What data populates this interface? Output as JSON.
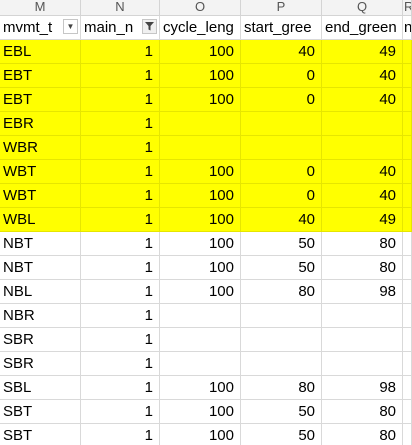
{
  "column_letters": [
    "M",
    "N",
    "O",
    "P",
    "Q",
    "R"
  ],
  "headers": [
    {
      "label": "mvmt_t",
      "filter_icon": "dropdown-arrow"
    },
    {
      "label": "main_n",
      "filter_icon": "filter-funnel"
    },
    {
      "label": "cycle_leng",
      "filter_icon": ""
    },
    {
      "label": "start_gree",
      "filter_icon": ""
    },
    {
      "label": "end_green",
      "filter_icon": ""
    },
    {
      "label": "n",
      "filter_icon": ""
    }
  ],
  "rows": [
    {
      "mvmt": "EBL",
      "main": "1",
      "cycle": "100",
      "start": "40",
      "end": "49",
      "highlight": true
    },
    {
      "mvmt": "EBT",
      "main": "1",
      "cycle": "100",
      "start": "0",
      "end": "40",
      "highlight": true
    },
    {
      "mvmt": "EBT",
      "main": "1",
      "cycle": "100",
      "start": "0",
      "end": "40",
      "highlight": true
    },
    {
      "mvmt": "EBR",
      "main": "1",
      "cycle": "",
      "start": "",
      "end": "",
      "highlight": true
    },
    {
      "mvmt": "WBR",
      "main": "1",
      "cycle": "",
      "start": "",
      "end": "",
      "highlight": true
    },
    {
      "mvmt": "WBT",
      "main": "1",
      "cycle": "100",
      "start": "0",
      "end": "40",
      "highlight": true
    },
    {
      "mvmt": "WBT",
      "main": "1",
      "cycle": "100",
      "start": "0",
      "end": "40",
      "highlight": true
    },
    {
      "mvmt": "WBL",
      "main": "1",
      "cycle": "100",
      "start": "40",
      "end": "49",
      "highlight": true
    },
    {
      "mvmt": "NBT",
      "main": "1",
      "cycle": "100",
      "start": "50",
      "end": "80",
      "highlight": false
    },
    {
      "mvmt": "NBT",
      "main": "1",
      "cycle": "100",
      "start": "50",
      "end": "80",
      "highlight": false
    },
    {
      "mvmt": "NBL",
      "main": "1",
      "cycle": "100",
      "start": "80",
      "end": "98",
      "highlight": false
    },
    {
      "mvmt": "NBR",
      "main": "1",
      "cycle": "",
      "start": "",
      "end": "",
      "highlight": false
    },
    {
      "mvmt": "SBR",
      "main": "1",
      "cycle": "",
      "start": "",
      "end": "",
      "highlight": false
    },
    {
      "mvmt": "SBR",
      "main": "1",
      "cycle": "",
      "start": "",
      "end": "",
      "highlight": false
    },
    {
      "mvmt": "SBL",
      "main": "1",
      "cycle": "100",
      "start": "80",
      "end": "98",
      "highlight": false
    },
    {
      "mvmt": "SBT",
      "main": "1",
      "cycle": "100",
      "start": "50",
      "end": "80",
      "highlight": false
    },
    {
      "mvmt": "SBT",
      "main": "1",
      "cycle": "100",
      "start": "50",
      "end": "80",
      "highlight": false
    }
  ],
  "colors": {
    "highlight": "#ffff00",
    "header_bg": "#f3f3f3",
    "gridline": "#d9d9d9"
  }
}
